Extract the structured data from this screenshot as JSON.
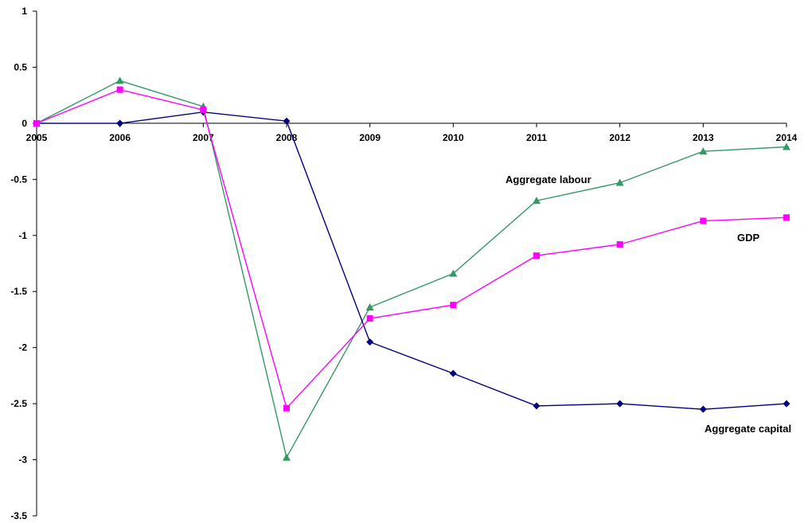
{
  "chart_data": {
    "type": "line",
    "title": "",
    "xlabel": "",
    "ylabel": "",
    "x": [
      "2005",
      "2006",
      "2007",
      "2008",
      "2009",
      "2010",
      "2011",
      "2012",
      "2013",
      "2014"
    ],
    "ylim": [
      -3.5,
      1
    ],
    "yticks": [
      1,
      0.5,
      0,
      -0.5,
      -1,
      -1.5,
      -2,
      -2.5,
      -3,
      -3.5
    ],
    "ytick_labels": [
      "1",
      "0.5",
      "0",
      "-0.5",
      "-1",
      "-1.5",
      "-2",
      "-2.5",
      "-3",
      "-3.5"
    ],
    "grid": false,
    "legend": "inline labels",
    "series": [
      {
        "key": "labour",
        "name": "Aggregate labour",
        "color": "#339966",
        "marker": "triangle",
        "values": [
          0,
          0.38,
          0.15,
          -2.98,
          -1.64,
          -1.34,
          -0.69,
          -0.53,
          -0.25,
          -0.21
        ]
      },
      {
        "key": "gdp",
        "name": "GDP",
        "color": "#ff00ff",
        "marker": "square",
        "values": [
          0,
          0.3,
          0.12,
          -2.54,
          -1.74,
          -1.62,
          -1.18,
          -1.08,
          -0.87,
          -0.84
        ]
      },
      {
        "key": "capital",
        "name": "Aggregate capital",
        "color": "#000080",
        "marker": "diamond",
        "values": [
          0,
          0,
          0.1,
          0.02,
          -1.95,
          -2.23,
          -2.52,
          -2.5,
          -2.55,
          -2.5
        ]
      }
    ]
  }
}
